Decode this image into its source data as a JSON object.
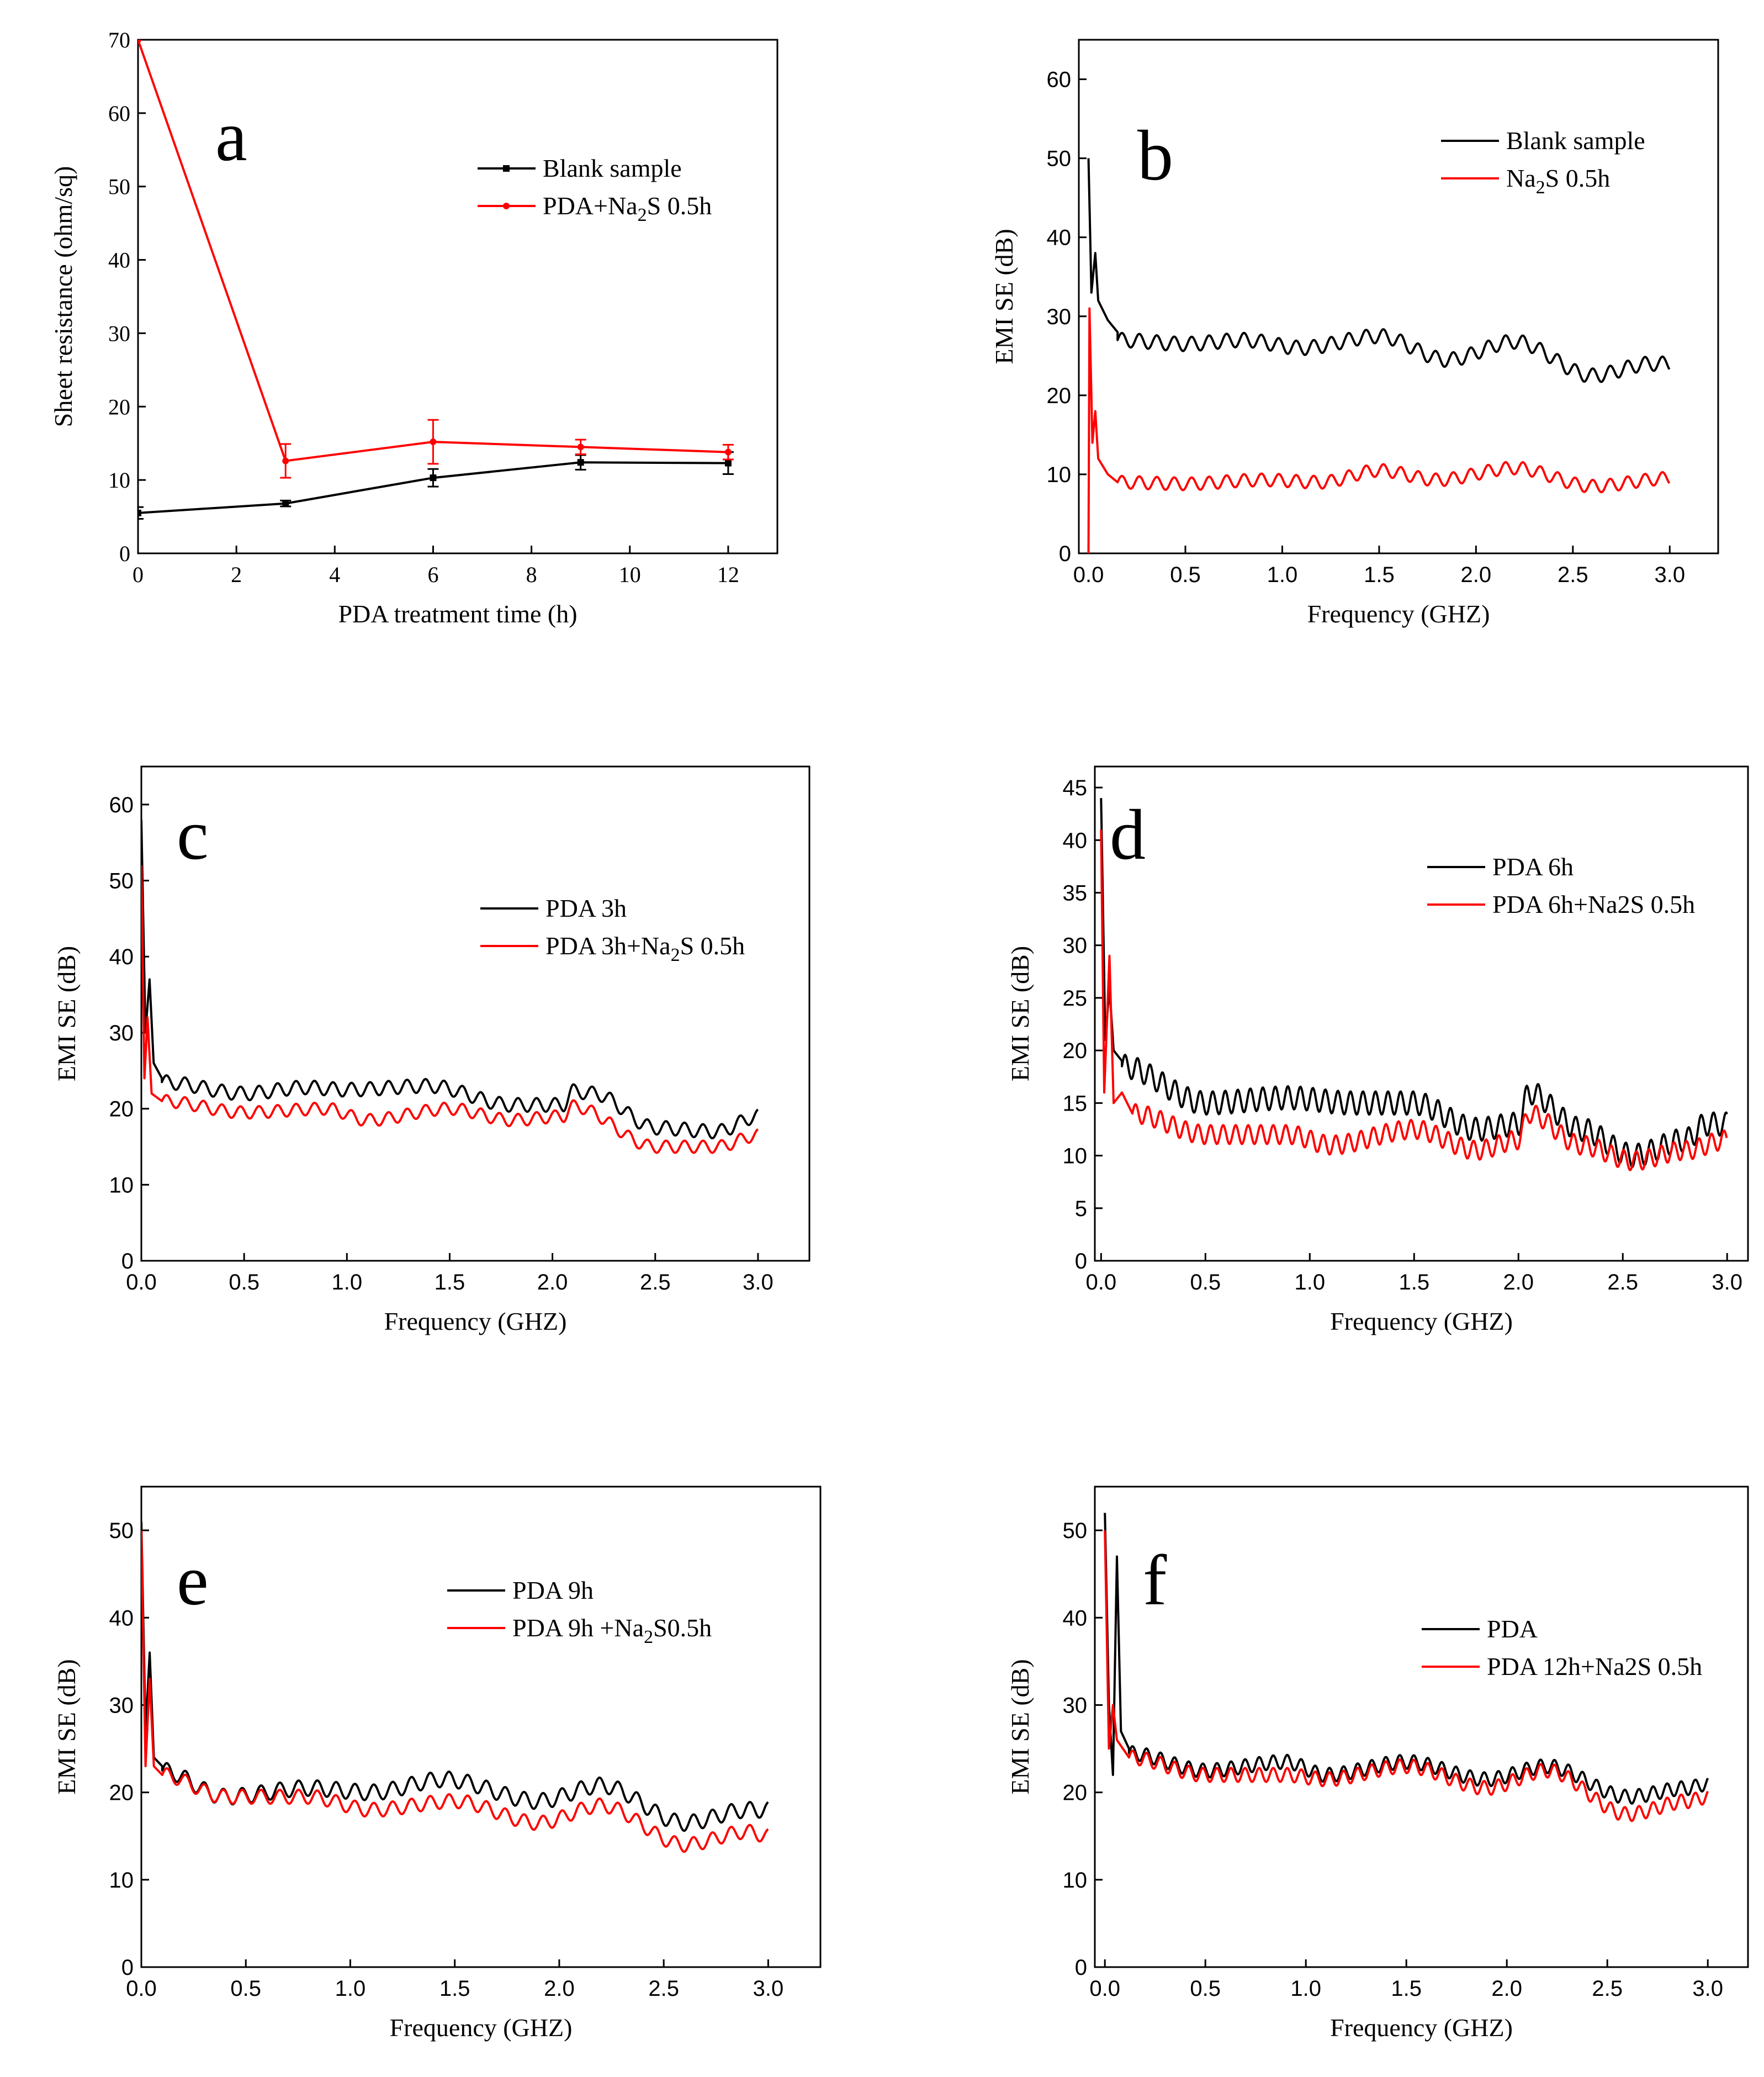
{
  "chart_data": [
    {
      "id": "a",
      "type": "line",
      "panel_label": "a",
      "xlabel": "PDA treatment time (h)",
      "ylabel": "Sheet resistance (ohm/sq)",
      "xlim": [
        0,
        13
      ],
      "ylim": [
        0,
        70
      ],
      "xticks": [
        "0",
        "2",
        "4",
        "6",
        "8",
        "10",
        "12"
      ],
      "yticks": [
        "0",
        "10",
        "20",
        "30",
        "40",
        "50",
        "60",
        "70"
      ],
      "legend_position": "top-right",
      "series": [
        {
          "name": "Blank sample",
          "color": "#000000",
          "marker": "square",
          "x": [
            0,
            3,
            6,
            9,
            12
          ],
          "y": [
            5.5,
            6.8,
            10.3,
            12.4,
            12.3
          ],
          "err": [
            0.8,
            0.4,
            1.2,
            1.0,
            1.5
          ]
        },
        {
          "name": "PDA+Na2S 0.5h",
          "sub_label": [
            "PDA+Na",
            "2",
            "S 0.5h"
          ],
          "color": "#ff0000",
          "marker": "circle",
          "x": [
            0,
            3,
            6,
            9,
            12
          ],
          "y": [
            70,
            12.6,
            15.2,
            14.5,
            13.8
          ],
          "err": [
            0,
            2.3,
            3.0,
            1.0,
            1.0
          ]
        }
      ]
    },
    {
      "id": "b",
      "type": "line",
      "panel_label": "b",
      "xlabel": "Frequency (GHZ)",
      "ylabel": "EMI SE (dB)",
      "xlim": [
        -0.05,
        3.25
      ],
      "ylim": [
        0,
        65
      ],
      "xticks": [
        "0.0",
        "0.5",
        "1.0",
        "1.5",
        "2.0",
        "2.5",
        "3.0"
      ],
      "yticks": [
        "0",
        "10",
        "20",
        "30",
        "40",
        "50",
        "60"
      ],
      "legend_position": "top-right",
      "series": [
        {
          "name": "Blank sample",
          "color": "#000000",
          "spikes": [
            [
              0,
              50
            ],
            [
              0.015,
              33
            ],
            [
              0.035,
              38
            ],
            [
              0.05,
              32
            ],
            [
              0.1,
              29.5
            ],
            [
              0.15,
              28
            ]
          ],
          "baseline": [
            [
              0.15,
              27
            ],
            [
              0.5,
              26.5
            ],
            [
              0.8,
              27
            ],
            [
              1.1,
              26
            ],
            [
              1.5,
              27.5
            ],
            [
              1.85,
              24.5
            ],
            [
              2.2,
              26.8
            ],
            [
              2.6,
              22.5
            ],
            [
              2.9,
              24
            ],
            [
              3.0,
              24
            ]
          ],
          "amp": 0.9,
          "period": 0.09
        },
        {
          "name": "Na2S 0.5h",
          "sub_label": [
            "Na",
            "2",
            "S 0.5h"
          ],
          "color": "#ff0000",
          "spikes": [
            [
              0,
              0
            ],
            [
              0.005,
              31
            ],
            [
              0.02,
              14
            ],
            [
              0.035,
              18
            ],
            [
              0.05,
              12
            ],
            [
              0.1,
              10
            ],
            [
              0.15,
              9
            ]
          ],
          "baseline": [
            [
              0.15,
              9
            ],
            [
              0.5,
              8.8
            ],
            [
              0.9,
              9.3
            ],
            [
              1.2,
              9
            ],
            [
              1.5,
              10.5
            ],
            [
              1.8,
              9.3
            ],
            [
              2.2,
              10.8
            ],
            [
              2.6,
              8.5
            ],
            [
              3.0,
              9.5
            ]
          ],
          "amp": 0.8,
          "period": 0.09
        }
      ]
    },
    {
      "id": "c",
      "type": "line",
      "panel_label": "c",
      "xlabel": "Frequency (GHZ)",
      "ylabel": "EMI SE (dB)",
      "xlim": [
        0,
        3.25
      ],
      "ylim": [
        0,
        65
      ],
      "xticks": [
        "0.0",
        "0.5",
        "1.0",
        "1.5",
        "2.0",
        "2.5",
        "3.0"
      ],
      "yticks": [
        "0",
        "10",
        "20",
        "30",
        "40",
        "50",
        "60"
      ],
      "legend_position": "center-right",
      "series": [
        {
          "name": "PDA 3h",
          "color": "#000000",
          "spikes": [
            [
              0,
              58
            ],
            [
              0.02,
              30
            ],
            [
              0.04,
              37
            ],
            [
              0.06,
              26
            ],
            [
              0.1,
              24
            ]
          ],
          "baseline": [
            [
              0.1,
              23.5
            ],
            [
              0.5,
              22
            ],
            [
              0.8,
              22.8
            ],
            [
              1.0,
              22.5
            ],
            [
              1.4,
              23
            ],
            [
              1.8,
              20.5
            ],
            [
              2.05,
              20.5
            ],
            [
              2.1,
              22.3
            ],
            [
              2.2,
              22
            ],
            [
              2.5,
              17.5
            ],
            [
              2.8,
              17
            ],
            [
              3.0,
              19
            ]
          ],
          "amp": 0.9,
          "period": 0.09
        },
        {
          "name": "PDA 3h+Na2S 0.5h",
          "sub_label": [
            "PDA 3h+Na",
            "2",
            "S 0.5h"
          ],
          "color": "#ff0000",
          "spikes": [
            [
              0,
              52
            ],
            [
              0.015,
              24
            ],
            [
              0.03,
              32
            ],
            [
              0.05,
              22
            ],
            [
              0.1,
              21
            ]
          ],
          "baseline": [
            [
              0.1,
              21
            ],
            [
              0.5,
              19.5
            ],
            [
              0.9,
              20
            ],
            [
              1.1,
              18.5
            ],
            [
              1.5,
              20
            ],
            [
              1.8,
              18.5
            ],
            [
              2.05,
              19
            ],
            [
              2.1,
              20.3
            ],
            [
              2.5,
              15
            ],
            [
              2.8,
              15
            ],
            [
              3.0,
              16.5
            ]
          ],
          "amp": 0.8,
          "period": 0.09
        }
      ]
    },
    {
      "id": "d",
      "type": "line",
      "panel_label": "d",
      "xlabel": "Frequency (GHZ)",
      "ylabel": "EMI SE (dB)",
      "xlim": [
        -0.03,
        3.1
      ],
      "ylim": [
        0,
        47
      ],
      "xticks": [
        "0.0",
        "0.5",
        "1.0",
        "1.5",
        "2.0",
        "2.5",
        "3.0"
      ],
      "yticks": [
        "0",
        "5",
        "10",
        "15",
        "20",
        "25",
        "30",
        "35",
        "40",
        "45"
      ],
      "legend_position": "top-right",
      "series": [
        {
          "name": "PDA 6h",
          "color": "#000000",
          "spikes": [
            [
              0,
              44
            ],
            [
              0.02,
              21
            ],
            [
              0.04,
              26
            ],
            [
              0.06,
              20
            ],
            [
              0.1,
              19
            ]
          ],
          "baseline": [
            [
              0.1,
              18.5
            ],
            [
              0.5,
              15
            ],
            [
              0.9,
              15.5
            ],
            [
              1.2,
              15
            ],
            [
              1.5,
              15
            ],
            [
              1.8,
              12.5
            ],
            [
              2.0,
              13
            ],
            [
              2.05,
              16
            ],
            [
              2.3,
              12.5
            ],
            [
              2.55,
              10
            ],
            [
              2.8,
              11.5
            ],
            [
              2.9,
              13
            ],
            [
              3.0,
              13
            ]
          ],
          "amp": 1.1,
          "period": 0.06
        },
        {
          "name": "PDA 6h+Na2S 0.5h",
          "color": "#ff0000",
          "spikes": [
            [
              0,
              41
            ],
            [
              0.015,
              16
            ],
            [
              0.04,
              29
            ],
            [
              0.06,
              15
            ],
            [
              0.1,
              16
            ],
            [
              0.15,
              14
            ]
          ],
          "baseline": [
            [
              0.15,
              14
            ],
            [
              0.5,
              12
            ],
            [
              0.9,
              12
            ],
            [
              1.1,
              11
            ],
            [
              1.5,
              12.5
            ],
            [
              1.8,
              10.5
            ],
            [
              2.0,
              11.5
            ],
            [
              2.05,
              14
            ],
            [
              2.3,
              11
            ],
            [
              2.55,
              9.5
            ],
            [
              2.8,
              10.5
            ],
            [
              3.0,
              11.5
            ]
          ],
          "amp": 0.9,
          "period": 0.06
        }
      ]
    },
    {
      "id": "e",
      "type": "line",
      "panel_label": "e",
      "xlabel": "Frequency (GHZ)",
      "ylabel": "EMI SE (dB)",
      "xlim": [
        0,
        3.25
      ],
      "ylim": [
        0,
        55
      ],
      "xticks": [
        "0.0",
        "0.5",
        "1.0",
        "1.5",
        "2.0",
        "2.5",
        "3.0"
      ],
      "yticks": [
        "0",
        "10",
        "20",
        "30",
        "40",
        "50"
      ],
      "legend_position": "top-right",
      "series": [
        {
          "name": "PDA 9h",
          "color": "#000000",
          "spikes": [
            [
              0,
              51
            ],
            [
              0.02,
              27
            ],
            [
              0.04,
              36
            ],
            [
              0.06,
              24
            ],
            [
              0.1,
              23
            ]
          ],
          "baseline": [
            [
              0.1,
              22.5
            ],
            [
              0.4,
              19.5
            ],
            [
              0.8,
              20.5
            ],
            [
              1.1,
              20
            ],
            [
              1.45,
              21.5
            ],
            [
              1.9,
              19
            ],
            [
              2.2,
              20.8
            ],
            [
              2.6,
              16.5
            ],
            [
              2.9,
              18
            ],
            [
              3.0,
              18
            ]
          ],
          "amp": 0.9,
          "period": 0.09
        },
        {
          "name": "PDA 9h +Na2S0.5h",
          "sub_label": [
            "PDA 9h +Na",
            "2",
            "S0.5h"
          ],
          "color": "#ff0000",
          "spikes": [
            [
              0,
              50
            ],
            [
              0.02,
              23
            ],
            [
              0.04,
              33
            ],
            [
              0.06,
              23
            ],
            [
              0.1,
              22
            ]
          ],
          "baseline": [
            [
              0.1,
              22
            ],
            [
              0.4,
              19.5
            ],
            [
              0.8,
              19.5
            ],
            [
              1.1,
              18
            ],
            [
              1.5,
              19
            ],
            [
              1.9,
              16.5
            ],
            [
              2.2,
              18.5
            ],
            [
              2.6,
              14
            ],
            [
              2.9,
              15.5
            ],
            [
              3.0,
              15
            ]
          ],
          "amp": 0.8,
          "period": 0.09
        }
      ]
    },
    {
      "id": "f",
      "type": "line",
      "panel_label": "f",
      "xlabel": "Frequency (GHZ)",
      "ylabel": "EMI SE (dB)",
      "xlim": [
        -0.05,
        3.2
      ],
      "ylim": [
        0,
        55
      ],
      "xticks": [
        "0.0",
        "0.5",
        "1.0",
        "1.5",
        "2.0",
        "2.5",
        "3.0"
      ],
      "yticks": [
        "0",
        "10",
        "20",
        "30",
        "40",
        "50"
      ],
      "legend_position": "top-right",
      "series": [
        {
          "name": "PDA",
          "color": "#000000",
          "spikes": [
            [
              0,
              52
            ],
            [
              0.02,
              30
            ],
            [
              0.04,
              22
            ],
            [
              0.06,
              47
            ],
            [
              0.08,
              27
            ],
            [
              0.12,
              25
            ]
          ],
          "baseline": [
            [
              0.12,
              24.5
            ],
            [
              0.5,
              22.5
            ],
            [
              0.9,
              23.5
            ],
            [
              1.1,
              22
            ],
            [
              1.5,
              23.5
            ],
            [
              1.9,
              21.5
            ],
            [
              2.2,
              23
            ],
            [
              2.6,
              19.5
            ],
            [
              2.9,
              20.5
            ],
            [
              3.0,
              21
            ]
          ],
          "amp": 0.8,
          "period": 0.07
        },
        {
          "name": "PDA 12h+Na2S 0.5h",
          "color": "#ff0000",
          "spikes": [
            [
              0,
              50
            ],
            [
              0.02,
              25
            ],
            [
              0.04,
              30
            ],
            [
              0.06,
              26
            ],
            [
              0.12,
              24
            ]
          ],
          "baseline": [
            [
              0.12,
              24
            ],
            [
              0.5,
              22
            ],
            [
              0.9,
              22
            ],
            [
              1.1,
              21.5
            ],
            [
              1.5,
              23
            ],
            [
              1.9,
              20.5
            ],
            [
              2.2,
              22.5
            ],
            [
              2.6,
              17.5
            ],
            [
              2.9,
              19
            ],
            [
              3.0,
              19.5
            ]
          ],
          "amp": 0.8,
          "period": 0.07
        }
      ]
    }
  ]
}
